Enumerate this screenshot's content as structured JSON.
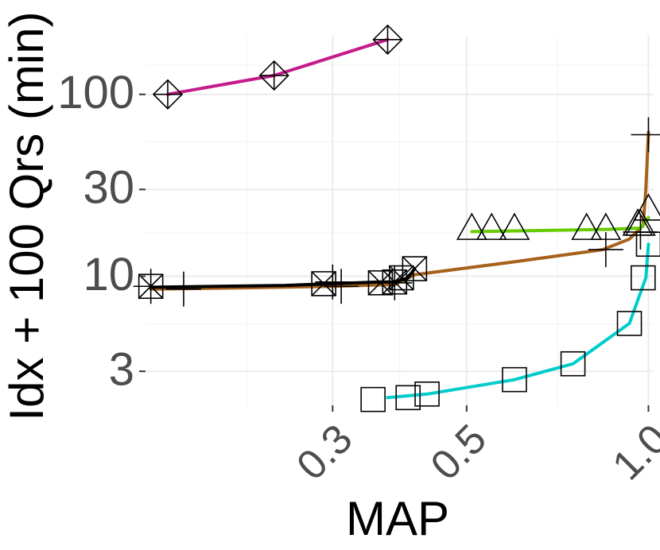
{
  "chart_data": {
    "type": "line",
    "xlabel": "MAP",
    "ylabel": "Idx + 100 Qrs (min)",
    "x_scale": "log",
    "y_scale": "log",
    "xlim": [
      0.147,
      1.02
    ],
    "ylim": [
      1.95,
      210
    ],
    "x_ticks": [
      0.3,
      0.5,
      1.0
    ],
    "x_tick_labels": [
      "0.3",
      "0.5",
      "1.0"
    ],
    "y_ticks": [
      3,
      10,
      30,
      100
    ],
    "y_tick_labels": [
      "3",
      "10",
      "30",
      "100"
    ],
    "grid": true,
    "legend": "none",
    "series": [
      {
        "color": "#c51b8a",
        "marker": "diamond-plus",
        "line_x": [
          0.16,
          0.24,
          0.37
        ],
        "line_y": [
          100,
          127,
          200
        ],
        "points_x": [
          0.16,
          0.24,
          0.37
        ],
        "points_y": [
          100,
          127,
          200
        ]
      },
      {
        "color": "#a6611a",
        "marker": "plus",
        "line_x": [
          0.15,
          0.2,
          0.3,
          0.38,
          0.41,
          0.6,
          0.84,
          0.93,
          0.98,
          0.99,
          1.0
        ],
        "line_y": [
          8.5,
          8.6,
          8.8,
          9.0,
          10.2,
          12.0,
          14.0,
          16.0,
          19.0,
          30,
          62
        ],
        "points_x": [
          0.15,
          0.17,
          0.3,
          0.31,
          0.38,
          0.85,
          0.97,
          1.0
        ],
        "points_y": [
          8.8,
          8.5,
          9.3,
          8.8,
          9.2,
          14.0,
          17.5,
          60
        ]
      },
      {
        "color": "#000000",
        "marker": "square-cross",
        "line_x": [
          0.15,
          0.25,
          0.3,
          0.36,
          0.38,
          0.4,
          0.41
        ],
        "line_y": [
          8.7,
          8.9,
          9.1,
          9.3,
          9.3,
          9.8,
          11.0
        ],
        "points_x": [
          0.15,
          0.29,
          0.36,
          0.38,
          0.39,
          0.41
        ],
        "points_y": [
          8.8,
          9.1,
          9.2,
          9.3,
          9.8,
          11.0
        ]
      },
      {
        "color": "#66cc00",
        "marker": "triangle",
        "line_x": [
          0.51,
          0.85,
          0.97,
          1.0
        ],
        "line_y": [
          17.6,
          18.1,
          18.4,
          21.0
        ],
        "points_x": [
          0.51,
          0.55,
          0.6,
          0.79,
          0.85,
          0.96,
          0.97,
          1.0
        ],
        "points_y": [
          18.0,
          18.0,
          18.0,
          18.0,
          18.0,
          19.0,
          19.0,
          23.0
        ]
      },
      {
        "color": "#00cccc",
        "marker": "square",
        "line_x": [
          0.37,
          0.43,
          0.6,
          0.75,
          0.93,
          0.99,
          1.0
        ],
        "line_y": [
          2.15,
          2.25,
          2.7,
          3.3,
          5.5,
          9.8,
          15.0
        ],
        "points_x": [
          0.35,
          0.4,
          0.43,
          0.6,
          0.75,
          0.93,
          0.98,
          1.0
        ],
        "points_y": [
          2.1,
          2.15,
          2.25,
          2.7,
          3.3,
          5.5,
          9.8,
          15.0
        ]
      }
    ]
  }
}
